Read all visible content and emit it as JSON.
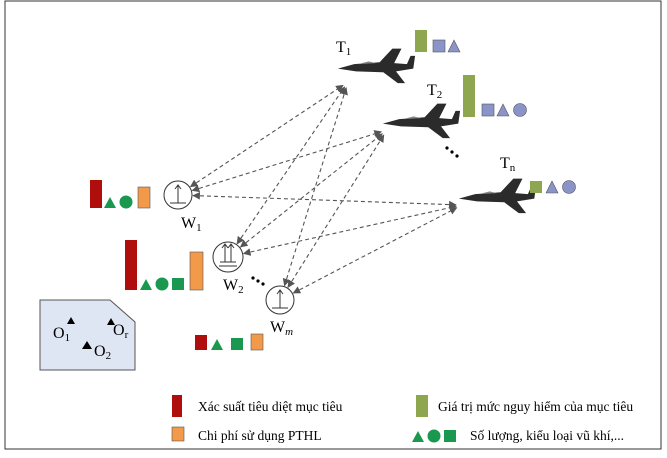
{
  "targets": [
    {
      "label": "T",
      "sub": "1"
    },
    {
      "label": "T",
      "sub": "2"
    },
    {
      "label": "T",
      "sub": "n"
    }
  ],
  "weapons": [
    {
      "label": "W",
      "sub": "1"
    },
    {
      "label": "W",
      "sub": "2"
    },
    {
      "label": "W",
      "sub": "m"
    }
  ],
  "obstacles": [
    {
      "label": "O",
      "sub": "1"
    },
    {
      "label": "O",
      "sub": "2"
    },
    {
      "label": "O",
      "sub": "r"
    }
  ],
  "legend": [
    "Xác suất tiêu diệt mục tiêu",
    "Chi phí sử dụng PTHL",
    "Giá trị mức nguy hiểm của mục tiêu",
    "Số lượng, kiểu loại vũ khí,..."
  ]
}
